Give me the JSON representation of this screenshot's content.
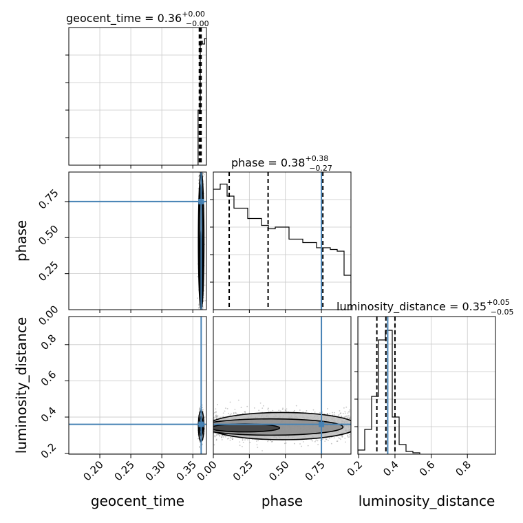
{
  "chart_data": {
    "type": "corner",
    "parameters": [
      "geocent_time",
      "phase",
      "luminosity_distance"
    ],
    "axis_labels": [
      "geocent_time",
      "phase",
      "luminosity_distance"
    ],
    "titles": [
      {
        "param": "geocent_time",
        "name": "geocent_time",
        "median": "0.36",
        "plus": "+0.00",
        "minus": "−0.00"
      },
      {
        "param": "phase",
        "name": "phase",
        "median": "0.38",
        "plus": "+0.38",
        "minus": "−0.27"
      },
      {
        "param": "luminosity_distance",
        "name": "luminosity_distance",
        "median": "0.35",
        "plus": "+0.05",
        "minus": "−0.05"
      }
    ],
    "ranges": {
      "geocent_time": [
        0.15,
        0.372
      ],
      "phase": [
        0.0,
        0.955
      ],
      "luminosity_distance": [
        0.195,
        0.955
      ]
    },
    "ticks": {
      "geocent_time": {
        "values": [
          0.2,
          0.25,
          0.3,
          0.35
        ],
        "labels": [
          "0.20",
          "0.25",
          "0.30",
          "0.35"
        ]
      },
      "phase": {
        "values": [
          0.0,
          0.25,
          0.5,
          0.75
        ],
        "labels": [
          "0.00",
          "0.25",
          "0.50",
          "0.75"
        ]
      },
      "luminosity_distance": {
        "x_values": [
          0.2,
          0.4,
          0.6,
          0.8
        ],
        "x_labels": [
          "0.2",
          "0.4",
          "0.6",
          "0.8"
        ],
        "y_values": [
          0.2,
          0.4,
          0.6,
          0.8
        ],
        "y_labels": [
          "0.2",
          "0.4",
          "0.6",
          "0.8"
        ]
      }
    },
    "truths": {
      "geocent_time": 0.3635,
      "phase": 0.75,
      "luminosity_distance": 0.36
    },
    "quantiles": {
      "geocent_time": [
        0.3606,
        0.362,
        0.3634
      ],
      "phase": [
        0.11,
        0.38,
        0.76
      ],
      "luminosity_distance": [
        0.3,
        0.35,
        0.4
      ]
    },
    "histograms": {
      "phase": {
        "edges": [
          0.0,
          0.0477,
          0.0955,
          0.1432,
          0.191,
          0.2387,
          0.2865,
          0.3342,
          0.382,
          0.4297,
          0.4775,
          0.5252,
          0.573,
          0.6207,
          0.6685,
          0.7162,
          0.764,
          0.8117,
          0.8595,
          0.9072,
          0.955
        ],
        "counts": [
          0.7,
          0.73,
          0.66,
          0.59,
          0.59,
          0.53,
          0.53,
          0.49,
          0.47,
          0.48,
          0.48,
          0.41,
          0.41,
          0.39,
          0.39,
          0.36,
          0.36,
          0.35,
          0.34,
          0.2
        ],
        "ymax": 0.8
      },
      "luminosity_distance": {
        "edges": [
          0.195,
          0.233,
          0.271,
          0.309,
          0.347,
          0.385,
          0.423,
          0.461,
          0.499,
          0.537
        ],
        "counts": [
          0.03,
          0.18,
          0.42,
          0.83,
          0.9,
          0.27,
          0.07,
          0.02,
          0.01
        ],
        "ymax": 1.0
      },
      "geocent_time": {
        "edges": [
          0.3585,
          0.362,
          0.3655,
          0.369,
          0.372
        ],
        "counts": [
          0.4,
          0.9,
          0.88,
          0.92
        ],
        "ymax": 1.0
      }
    },
    "grid": true
  }
}
